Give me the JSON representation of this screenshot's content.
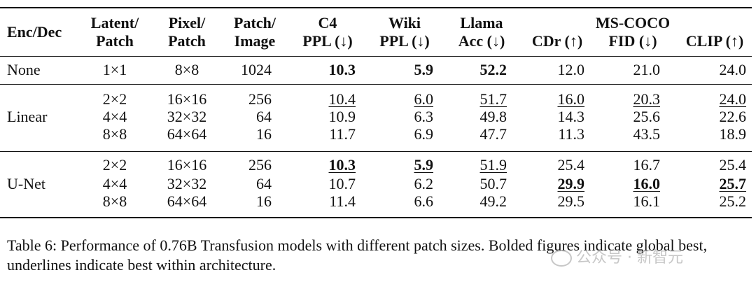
{
  "table": {
    "headers": {
      "enc_dec": "Enc/Dec",
      "latent_patch": [
        "Latent/",
        "Patch"
      ],
      "pixel_patch": [
        "Pixel/",
        "Patch"
      ],
      "patch_image": [
        "Patch/",
        "Image"
      ],
      "c4": [
        "C4",
        "PPL (↓)"
      ],
      "wiki": [
        "Wiki",
        "PPL (↓)"
      ],
      "llama": [
        "Llama",
        "Acc (↓)"
      ],
      "mscoco": "MS-COCO",
      "cdr": "CDr (↑)",
      "fid": "FID (↓)",
      "clip": "CLIP (↑)"
    },
    "groups": [
      {
        "name": "None",
        "rows": [
          {
            "latent": "1×1",
            "pixel": "8×8",
            "patches": "1024",
            "c4": "10.3",
            "wiki": "5.9",
            "llama": "52.2",
            "cdr": "12.0",
            "fid": "21.0",
            "clip": "24.0"
          }
        ]
      },
      {
        "name": "Linear",
        "rows": [
          {
            "latent": "2×2",
            "pixel": "16×16",
            "patches": "256",
            "c4": "10.4",
            "wiki": "6.0",
            "llama": "51.7",
            "cdr": "16.0",
            "fid": "20.3",
            "clip": "24.0"
          },
          {
            "latent": "4×4",
            "pixel": "32×32",
            "patches": "64",
            "c4": "10.9",
            "wiki": "6.3",
            "llama": "49.8",
            "cdr": "14.3",
            "fid": "25.6",
            "clip": "22.6"
          },
          {
            "latent": "8×8",
            "pixel": "64×64",
            "patches": "16",
            "c4": "11.7",
            "wiki": "6.9",
            "llama": "47.7",
            "cdr": "11.3",
            "fid": "43.5",
            "clip": "18.9"
          }
        ]
      },
      {
        "name": "U-Net",
        "rows": [
          {
            "latent": "2×2",
            "pixel": "16×16",
            "patches": "256",
            "c4": "10.3",
            "wiki": "5.9",
            "llama": "51.9",
            "cdr": "25.4",
            "fid": "16.7",
            "clip": "25.4"
          },
          {
            "latent": "4×4",
            "pixel": "32×32",
            "patches": "64",
            "c4": "10.7",
            "wiki": "6.2",
            "llama": "50.7",
            "cdr": "29.9",
            "fid": "16.0",
            "clip": "25.7"
          },
          {
            "latent": "8×8",
            "pixel": "64×64",
            "patches": "16",
            "c4": "11.4",
            "wiki": "6.6",
            "llama": "49.2",
            "cdr": "29.5",
            "fid": "16.1",
            "clip": "25.2"
          }
        ]
      }
    ]
  },
  "caption": "Table 6: Performance of 0.76B Transfusion models with different patch sizes. Bolded figures indicate global best, underlines indicate best within architecture.",
  "watermark": "公众号 · 新智元"
}
